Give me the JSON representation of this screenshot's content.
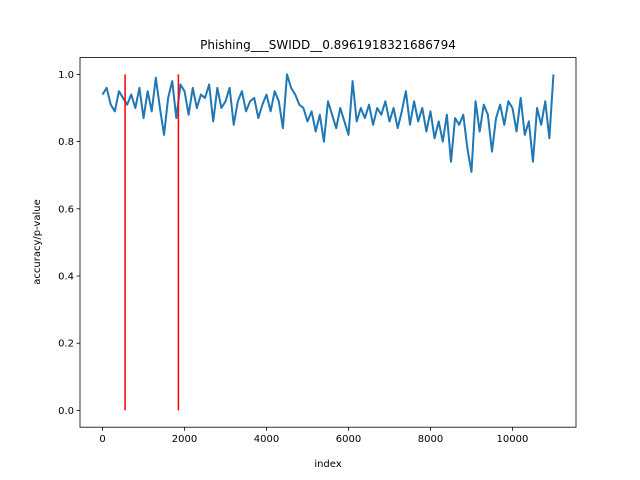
{
  "chart_data": {
    "type": "line",
    "title": "Phishing___SWIDD__0.8961918321686794",
    "xlabel": "index",
    "ylabel": "accuracy/p-value",
    "xlim": [
      -550,
      11550
    ],
    "ylim": [
      -0.05,
      1.05
    ],
    "xticks": [
      0,
      2000,
      4000,
      6000,
      8000,
      10000
    ],
    "yticks": [
      {
        "value": 0,
        "label": "0.0"
      },
      0.2,
      0.4,
      0.6,
      0.8,
      {
        "value": 1,
        "label": "1.0"
      }
    ],
    "x": [
      0,
      100,
      200,
      300,
      400,
      500,
      600,
      700,
      800,
      900,
      1000,
      1100,
      1200,
      1300,
      1400,
      1500,
      1600,
      1700,
      1800,
      1900,
      2000,
      2100,
      2200,
      2300,
      2400,
      2500,
      2600,
      2700,
      2800,
      2900,
      3000,
      3100,
      3200,
      3300,
      3400,
      3500,
      3600,
      3700,
      3800,
      3900,
      4000,
      4100,
      4200,
      4300,
      4400,
      4500,
      4600,
      4700,
      4800,
      4900,
      5000,
      5100,
      5200,
      5300,
      5400,
      5500,
      5600,
      5700,
      5800,
      5900,
      6000,
      6100,
      6200,
      6300,
      6400,
      6500,
      6600,
      6700,
      6800,
      6900,
      7000,
      7100,
      7200,
      7300,
      7400,
      7500,
      7600,
      7700,
      7800,
      7900,
      8000,
      8100,
      8200,
      8300,
      8400,
      8500,
      8600,
      8700,
      8800,
      8900,
      9000,
      9100,
      9200,
      9300,
      9400,
      9500,
      9600,
      9700,
      9800,
      9900,
      10000,
      10100,
      10200,
      10300,
      10400,
      10500,
      10600,
      10700,
      10800,
      10900,
      11000
    ],
    "series": [
      {
        "color": "#1f77b4",
        "values": [
          0.94,
          0.96,
          0.91,
          0.89,
          0.95,
          0.93,
          0.91,
          0.94,
          0.9,
          0.96,
          0.87,
          0.95,
          0.89,
          0.99,
          0.9,
          0.82,
          0.93,
          0.98,
          0.87,
          0.97,
          0.95,
          0.88,
          0.96,
          0.9,
          0.94,
          0.93,
          0.97,
          0.86,
          0.96,
          0.9,
          0.92,
          0.96,
          0.85,
          0.92,
          0.95,
          0.89,
          0.92,
          0.93,
          0.87,
          0.91,
          0.94,
          0.89,
          0.95,
          0.92,
          0.84,
          1.0,
          0.96,
          0.94,
          0.91,
          0.9,
          0.86,
          0.89,
          0.83,
          0.88,
          0.8,
          0.92,
          0.88,
          0.84,
          0.9,
          0.86,
          0.82,
          0.98,
          0.86,
          0.9,
          0.87,
          0.91,
          0.85,
          0.9,
          0.88,
          0.92,
          0.86,
          0.9,
          0.84,
          0.89,
          0.95,
          0.85,
          0.92,
          0.86,
          0.9,
          0.83,
          0.89,
          0.81,
          0.86,
          0.8,
          0.88,
          0.74,
          0.87,
          0.85,
          0.88,
          0.78,
          0.71,
          0.92,
          0.83,
          0.91,
          0.88,
          0.77,
          0.87,
          0.91,
          0.85,
          0.92,
          0.9,
          0.83,
          0.93,
          0.82,
          0.86,
          0.74,
          0.9,
          0.85,
          0.92,
          0.81,
          1.0
        ]
      }
    ],
    "vlines": {
      "color": "#ff0000",
      "x": [
        550,
        1850
      ],
      "y": [
        0,
        1
      ]
    }
  }
}
